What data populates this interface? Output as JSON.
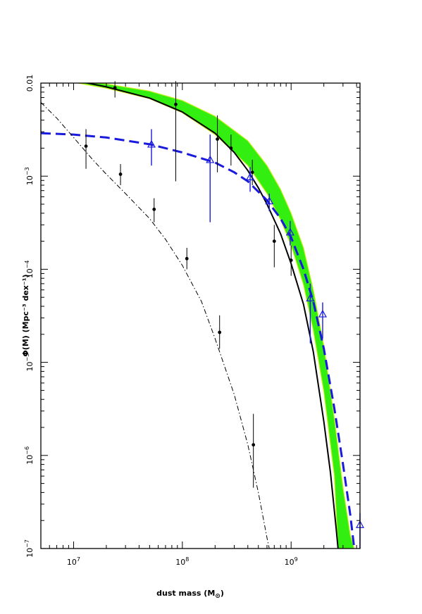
{
  "chart_data": {
    "type": "line",
    "title": "",
    "xlabel": "dust mass (M",
    "xlabel_sub": "⊙",
    "xlabel_close": ")",
    "ylabel": "Φ(M) (Mpc⁻³ dex⁻¹)",
    "xscale": "log",
    "yscale": "log",
    "xlim": [
      5000000,
      4300000000
    ],
    "ylim": [
      1e-07,
      0.01
    ],
    "x_tick_labels": [
      {
        "value": 10000000,
        "base": "10",
        "exp": "7"
      },
      {
        "value": 100000000,
        "base": "10",
        "exp": "8"
      },
      {
        "value": 1000000000,
        "base": "10",
        "exp": "9"
      }
    ],
    "y_tick_labels": [
      {
        "value": 0.01,
        "text": "0.01"
      },
      {
        "value": 0.001,
        "base": "10",
        "exp": "−3"
      },
      {
        "value": 0.0001,
        "base": "10",
        "exp": "−4"
      },
      {
        "value": 1e-05,
        "base": "10",
        "exp": "−5"
      },
      {
        "value": 1e-06,
        "base": "10",
        "exp": "−6"
      },
      {
        "value": 1e-07,
        "base": "10",
        "exp": "−7"
      }
    ],
    "band": {
      "color": "#33ee11",
      "edge_color": "#ccee22",
      "upper": [
        [
          5000000.0,
          0.0115
        ],
        [
          10000000.0,
          0.0105
        ],
        [
          20000000.0,
          0.0098
        ],
        [
          50000000.0,
          0.0082
        ],
        [
          100000000.0,
          0.0065
        ],
        [
          200000000.0,
          0.0044
        ],
        [
          400000000.0,
          0.0024
        ],
        [
          600000000.0,
          0.0013
        ],
        [
          800000000.0,
          0.00072
        ],
        [
          1000000000.0,
          0.0004
        ],
        [
          1300000000.0,
          0.00017
        ],
        [
          1600000000.0,
          6e-05
        ],
        [
          2000000000.0,
          1.5e-05
        ],
        [
          2500000000.0,
          2.5e-06
        ],
        [
          3000000000.0,
          4.5e-07
        ],
        [
          3500000000.0,
          1.4e-07
        ],
        [
          3800000000.0,
          1e-07
        ]
      ],
      "lower": [
        [
          5000000.0,
          0.0112
        ],
        [
          10000000.0,
          0.0102
        ],
        [
          20000000.0,
          0.0088
        ],
        [
          50000000.0,
          0.0068
        ],
        [
          100000000.0,
          0.0048
        ],
        [
          200000000.0,
          0.0028
        ],
        [
          400000000.0,
          0.0013
        ],
        [
          600000000.0,
          0.00065
        ],
        [
          800000000.0,
          0.00034
        ],
        [
          1000000000.0,
          0.00018
        ],
        [
          1300000000.0,
          6.8e-05
        ],
        [
          1600000000.0,
          2.2e-05
        ],
        [
          2000000000.0,
          4.8e-06
        ],
        [
          2500000000.0,
          6e-07
        ],
        [
          2700000000.0,
          1e-07
        ]
      ]
    },
    "series": [
      {
        "kind": "solid-black",
        "color": "#000000",
        "points": [
          [
            11000000.0,
            0.0105
          ],
          [
            20000000.0,
            0.0091
          ],
          [
            50000000.0,
            0.0069
          ],
          [
            100000000.0,
            0.0049
          ],
          [
            200000000.0,
            0.0029
          ],
          [
            300000000.0,
            0.0018
          ],
          [
            400000000.0,
            0.00115
          ],
          [
            500000000.0,
            0.00075
          ],
          [
            600000000.0,
            0.0005
          ],
          [
            800000000.0,
            0.00024
          ],
          [
            1000000000.0,
            0.000115
          ],
          [
            1300000000.0,
            4.2e-05
          ],
          [
            1600000000.0,
            1.3e-05
          ],
          [
            2000000000.0,
            2.3e-06
          ],
          [
            2300000000.0,
            6.5e-07
          ],
          [
            2600000000.0,
            1.6e-07
          ],
          [
            2700000000.0,
            1e-07
          ]
        ]
      },
      {
        "kind": "dashed-blue",
        "color": "#1a1adc",
        "points": [
          [
            5000000.0,
            0.0029
          ],
          [
            10000000.0,
            0.0028
          ],
          [
            20000000.0,
            0.0026
          ],
          [
            50000000.0,
            0.0022
          ],
          [
            100000000.0,
            0.0018
          ],
          [
            200000000.0,
            0.0014
          ],
          [
            300000000.0,
            0.0011
          ],
          [
            400000000.0,
            0.00088
          ],
          [
            600000000.0,
            0.00055
          ],
          [
            800000000.0,
            0.00035
          ],
          [
            1000000000.0,
            0.00022
          ],
          [
            1300000000.0,
            0.0001
          ],
          [
            1600000000.0,
            4.5e-05
          ],
          [
            2000000000.0,
            1.4e-05
          ],
          [
            2500000000.0,
            3.2e-06
          ],
          [
            3000000000.0,
            8e-07
          ],
          [
            3500000000.0,
            2.3e-07
          ],
          [
            4300000000.0,
            3e-08
          ]
        ]
      },
      {
        "kind": "dashdot-black",
        "color": "#000000",
        "points": [
          [
            5000000.0,
            0.0062
          ],
          [
            7000000.0,
            0.0042
          ],
          [
            10000000.0,
            0.0026
          ],
          [
            15000000.0,
            0.0015
          ],
          [
            20000000.0,
            0.00105
          ],
          [
            30000000.0,
            0.00065
          ],
          [
            50000000.0,
            0.00035
          ],
          [
            70000000.0,
            0.00021
          ],
          [
            100000000.0,
            0.00011
          ],
          [
            150000000.0,
            4.5e-05
          ],
          [
            200000000.0,
            1.8e-05
          ],
          [
            300000000.0,
            4.5e-06
          ],
          [
            400000000.0,
            1.3e-06
          ],
          [
            500000000.0,
            4e-07
          ],
          [
            600000000.0,
            1.3e-07
          ],
          [
            630000000.0,
            1e-07
          ]
        ]
      }
    ],
    "points_black": [
      {
        "x": 13000000,
        "y": 0.0021,
        "lo": 0.0012,
        "hi": 0.0032
      },
      {
        "x": 24000000,
        "y": 0.0089,
        "lo": 0.007,
        "hi": 0.0105
      },
      {
        "x": 27000000,
        "y": 0.00105,
        "lo": 0.0008,
        "hi": 0.00135
      },
      {
        "x": 55000000,
        "y": 0.00044,
        "lo": 0.00032,
        "hi": 0.00058
      },
      {
        "x": 87000000,
        "y": 0.0059,
        "lo": 0.00088,
        "hi": 0.0105
      },
      {
        "x": 110000000,
        "y": 0.00013,
        "lo": 0.0001,
        "hi": 0.00017
      },
      {
        "x": 210000000,
        "y": 0.0025,
        "lo": 0.0011,
        "hi": 0.0045
      },
      {
        "x": 220000000,
        "y": 2.1e-05,
        "lo": 1.4e-05,
        "hi": 3.2e-05
      },
      {
        "x": 280000000,
        "y": 0.002,
        "lo": 0.0013,
        "hi": 0.0028
      },
      {
        "x": 440000000,
        "y": 0.0011,
        "lo": 0.0008,
        "hi": 0.0015
      },
      {
        "x": 450000000,
        "y": 1.3e-06,
        "lo": 4.5e-07,
        "hi": 2.8e-06
      },
      {
        "x": 700000000,
        "y": 0.0002,
        "lo": 0.000105,
        "hi": 0.0003
      },
      {
        "x": 1000000000,
        "y": 0.000125,
        "lo": 8.5e-05,
        "hi": 0.00018
      }
    ],
    "points_blue": [
      {
        "x": 52000000,
        "y": 0.0022,
        "lo": 0.0013,
        "hi": 0.0032
      },
      {
        "x": 180000000,
        "y": 0.0015,
        "lo": 0.00032,
        "hi": 0.0028
      },
      {
        "x": 420000000,
        "y": 0.00098,
        "lo": 0.00068,
        "hi": 0.00125
      },
      {
        "x": 630000000,
        "y": 0.00054,
        "lo": 0.00042,
        "hi": 0.00065
      },
      {
        "x": 980000000,
        "y": 0.00025,
        "lo": 0.00018,
        "hi": 0.00033
      },
      {
        "x": 1500000000,
        "y": 4.9e-05,
        "lo": 1.6e-05,
        "hi": 7e-05
      },
      {
        "x": 1950000000,
        "y": 3.3e-05,
        "lo": 1.8e-05,
        "hi": 4.4e-05
      },
      {
        "x": 4300000000,
        "y": 1.8e-07,
        "lo": 1e-07,
        "hi": 2.4e-07
      }
    ],
    "grid": false,
    "legend": "none"
  }
}
